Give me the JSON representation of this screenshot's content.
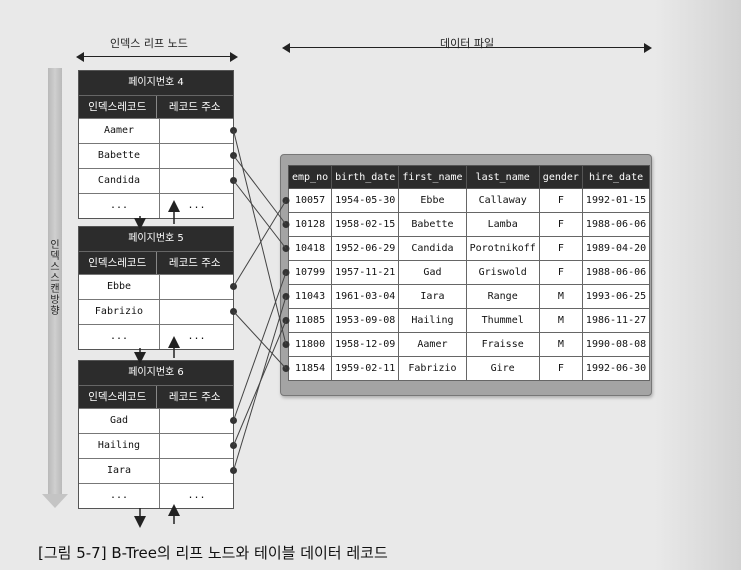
{
  "header": {
    "leaf_label": "인덱스 리프 노드",
    "data_label": "데이터 파일",
    "scan_label": "인덱스 스캔 방향"
  },
  "pages": [
    {
      "title": "페이지번호 4",
      "col_key": "인덱스레코드",
      "col_addr": "레코드 주소",
      "rows": [
        "Aamer",
        "Babette",
        "Candida",
        "..."
      ],
      "pointers": [
        6,
        1,
        2
      ]
    },
    {
      "title": "페이지번호 5",
      "col_key": "인덱스레코드",
      "col_addr": "레코드 주소",
      "rows": [
        "Ebbe",
        "Fabrizio",
        "..."
      ],
      "pointers": [
        0,
        7
      ]
    },
    {
      "title": "페이지번호 6",
      "col_key": "인덱스레코드",
      "col_addr": "레코드 주소",
      "rows": [
        "Gad",
        "Hailing",
        "Iara",
        "..."
      ],
      "pointers": [
        3,
        5,
        4
      ]
    }
  ],
  "table": {
    "columns": [
      "emp_no",
      "birth_date",
      "first_name",
      "last_name",
      "gender",
      "hire_date"
    ],
    "rows": [
      [
        "10057",
        "1954-05-30",
        "Ebbe",
        "Callaway",
        "F",
        "1992-01-15"
      ],
      [
        "10128",
        "1958-02-15",
        "Babette",
        "Lamba",
        "F",
        "1988-06-06"
      ],
      [
        "10418",
        "1952-06-29",
        "Candida",
        "Porotnikoff",
        "F",
        "1989-04-20"
      ],
      [
        "10799",
        "1957-11-21",
        "Gad",
        "Griswold",
        "F",
        "1988-06-06"
      ],
      [
        "11043",
        "1961-03-04",
        "Iara",
        "Range",
        "M",
        "1993-06-25"
      ],
      [
        "11085",
        "1953-09-08",
        "Hailing",
        "Thummel",
        "M",
        "1986-11-27"
      ],
      [
        "11800",
        "1958-12-09",
        "Aamer",
        "Fraisse",
        "M",
        "1990-08-08"
      ],
      [
        "11854",
        "1959-02-11",
        "Fabrizio",
        "Gire",
        "F",
        "1992-06-30"
      ]
    ]
  },
  "caption": "[그림 5-7] B-Tree의 리프 노드와 테이블 데이터 레코드"
}
